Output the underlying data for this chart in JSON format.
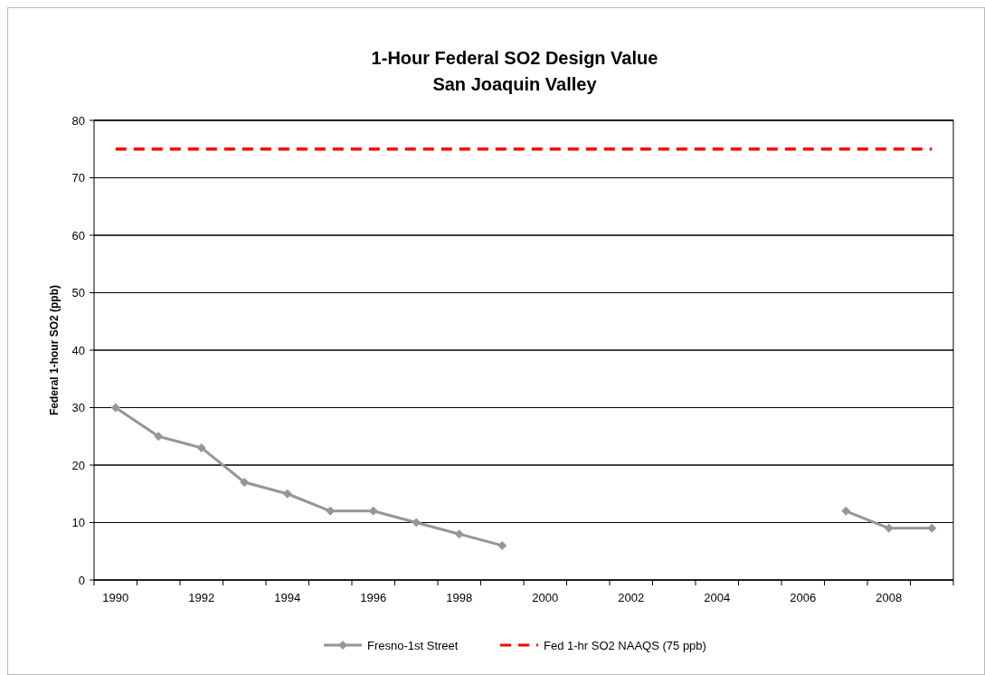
{
  "chart_data": {
    "type": "line",
    "title": "1-Hour Federal SO2 Design Value\nSan Joaquin Valley",
    "ylabel": "Federal 1-hour SO2 (ppb)",
    "categories": [
      "1990",
      null,
      "1992",
      null,
      "1994",
      null,
      "1996",
      null,
      "1998",
      null,
      "2000",
      null,
      "2002",
      null,
      "2004",
      null,
      "2006",
      null,
      "2008",
      null
    ],
    "series": [
      {
        "name": "Fresno-1st Street",
        "color": "#969696",
        "marker": "diamond",
        "line_style": "solid",
        "values": [
          30,
          25,
          23,
          17,
          15,
          12,
          12,
          10,
          8,
          6,
          null,
          null,
          null,
          null,
          null,
          null,
          null,
          12,
          9,
          9
        ]
      },
      {
        "name": "Fed 1-hr SO2 NAAQS (75 ppb)",
        "color": "#ff0000",
        "marker": "none",
        "line_style": "dashed",
        "values": [
          75,
          75,
          75,
          75,
          75,
          75,
          75,
          75,
          75,
          75,
          75,
          75,
          75,
          75,
          75,
          75,
          75,
          75,
          75,
          75
        ]
      }
    ],
    "ylim": [
      0,
      80
    ],
    "yticks": [
      0,
      10,
      20,
      30,
      40,
      50,
      60,
      70,
      80
    ],
    "grid": "y",
    "legend": "bottom"
  }
}
